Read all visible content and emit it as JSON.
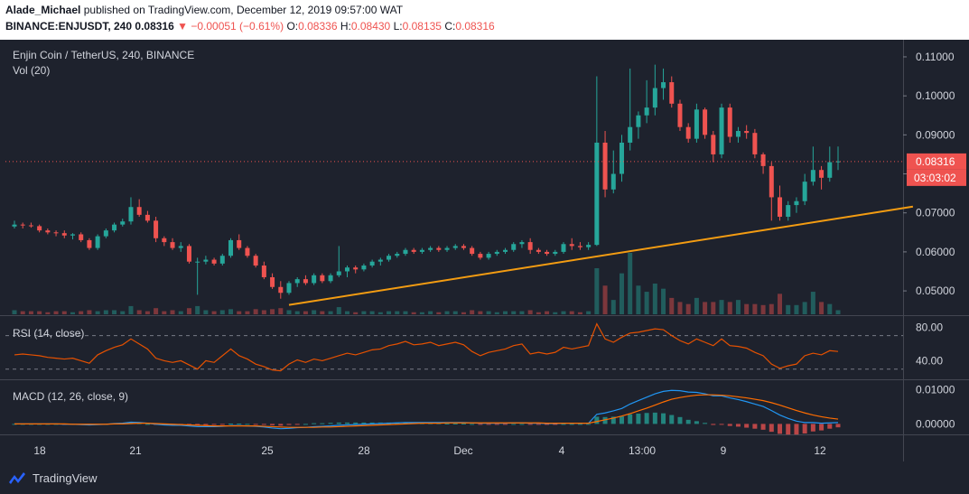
{
  "header": {
    "user": "Alade_Michael",
    "published": "published on TradingView.com, December 12, 2019 09:57:00 WAT",
    "symbol": "BINANCE:ENJUSDT, 240",
    "last": "0.08316",
    "change": "▼ −0.00051 (−0.61%)",
    "o_label": "O:",
    "o": "0.08336",
    "h_label": "H:",
    "h": "0.08430",
    "l_label": "L:",
    "l": "0.08135",
    "c_label": "C:",
    "c": "0.08316"
  },
  "chart_title": "Enjin Coin / TetherUS, 240, BINANCE",
  "vol_label": "Vol (20)",
  "rsi_label": "RSI (14, close)",
  "macd_label": "MACD (12, 26, close, 9)",
  "price_badge": "0.08316",
  "time_badge": "03:03:02",
  "footer_brand": "TradingView",
  "colors": {
    "background": "#1e222d",
    "up": "#26a69a",
    "down": "#ef5350",
    "trendline": "#f39c12",
    "rsi": "#e65100",
    "macd": "#2196f3",
    "signal": "#ff6d00"
  },
  "chart_data": {
    "type": "candlestick",
    "price_axis": {
      "ticks": [
        "0.11000",
        "0.10000",
        "0.09000",
        "0.08000",
        "0.07000",
        "0.06000",
        "0.05000"
      ],
      "range": [
        0.044,
        0.113
      ]
    },
    "rsi_axis": {
      "ticks": [
        "80.00",
        "40.00"
      ],
      "range": [
        20,
        90
      ],
      "bands": [
        70,
        30
      ]
    },
    "macd_axis": {
      "ticks": [
        "0.01000",
        "0.00000"
      ],
      "range": [
        -0.0028,
        0.0125
      ]
    },
    "x_ticks": [
      "18",
      "21",
      "25",
      "28",
      "Dec",
      "4",
      "13:00",
      "9",
      "12"
    ],
    "candles": [
      [
        0.0665,
        0.068,
        0.066,
        0.067
      ],
      [
        0.067,
        0.0675,
        0.066,
        0.0668
      ],
      [
        0.0668,
        0.0675,
        0.0662,
        0.0666
      ],
      [
        0.0666,
        0.067,
        0.065,
        0.0655
      ],
      [
        0.0655,
        0.066,
        0.0645,
        0.065
      ],
      [
        0.065,
        0.0655,
        0.064,
        0.0648
      ],
      [
        0.0648,
        0.0655,
        0.0635,
        0.0642
      ],
      [
        0.0642,
        0.0648,
        0.0632,
        0.0645
      ],
      [
        0.0645,
        0.065,
        0.0625,
        0.063
      ],
      [
        0.063,
        0.0635,
        0.0605,
        0.061
      ],
      [
        0.061,
        0.0645,
        0.0605,
        0.064
      ],
      [
        0.064,
        0.066,
        0.0635,
        0.0655
      ],
      [
        0.0655,
        0.0675,
        0.065,
        0.067
      ],
      [
        0.067,
        0.0685,
        0.0665,
        0.0678
      ],
      [
        0.0678,
        0.074,
        0.067,
        0.0715
      ],
      [
        0.0715,
        0.0735,
        0.069,
        0.0695
      ],
      [
        0.0695,
        0.0705,
        0.0675,
        0.068
      ],
      [
        0.068,
        0.069,
        0.0625,
        0.0635
      ],
      [
        0.0635,
        0.064,
        0.0615,
        0.0625
      ],
      [
        0.0625,
        0.0635,
        0.0605,
        0.061
      ],
      [
        0.061,
        0.0625,
        0.06,
        0.0615
      ],
      [
        0.0615,
        0.062,
        0.057,
        0.0575
      ],
      [
        0.0575,
        0.0585,
        0.049,
        0.0575
      ],
      [
        0.0575,
        0.059,
        0.0568,
        0.058
      ],
      [
        0.058,
        0.0585,
        0.0565,
        0.057
      ],
      [
        0.057,
        0.0595,
        0.0565,
        0.059
      ],
      [
        0.059,
        0.0635,
        0.0585,
        0.063
      ],
      [
        0.063,
        0.0645,
        0.0605,
        0.061
      ],
      [
        0.061,
        0.0615,
        0.0585,
        0.059
      ],
      [
        0.059,
        0.0595,
        0.056,
        0.0565
      ],
      [
        0.0565,
        0.0575,
        0.053,
        0.0535
      ],
      [
        0.0535,
        0.0545,
        0.0505,
        0.051
      ],
      [
        0.051,
        0.0525,
        0.048,
        0.0495
      ],
      [
        0.0495,
        0.0525,
        0.049,
        0.052
      ],
      [
        0.052,
        0.0535,
        0.051,
        0.053
      ],
      [
        0.053,
        0.054,
        0.0515,
        0.052
      ],
      [
        0.052,
        0.0545,
        0.0515,
        0.054
      ],
      [
        0.054,
        0.0545,
        0.052,
        0.0525
      ],
      [
        0.0525,
        0.0545,
        0.052,
        0.054
      ],
      [
        0.054,
        0.0615,
        0.0535,
        0.055
      ],
      [
        0.055,
        0.0565,
        0.0535,
        0.056
      ],
      [
        0.056,
        0.0565,
        0.0545,
        0.0555
      ],
      [
        0.0555,
        0.057,
        0.055,
        0.0565
      ],
      [
        0.0565,
        0.058,
        0.056,
        0.0575
      ],
      [
        0.0575,
        0.0585,
        0.0565,
        0.058
      ],
      [
        0.058,
        0.0595,
        0.0575,
        0.059
      ],
      [
        0.059,
        0.06,
        0.0585,
        0.0595
      ],
      [
        0.0595,
        0.061,
        0.059,
        0.0605
      ],
      [
        0.0605,
        0.061,
        0.0595,
        0.06
      ],
      [
        0.06,
        0.061,
        0.0595,
        0.0605
      ],
      [
        0.0605,
        0.0615,
        0.06,
        0.061
      ],
      [
        0.061,
        0.0615,
        0.06,
        0.0605
      ],
      [
        0.0605,
        0.0615,
        0.06,
        0.061
      ],
      [
        0.061,
        0.062,
        0.0605,
        0.0615
      ],
      [
        0.0615,
        0.062,
        0.0605,
        0.061
      ],
      [
        0.061,
        0.0615,
        0.059,
        0.0595
      ],
      [
        0.0595,
        0.06,
        0.058,
        0.0585
      ],
      [
        0.0585,
        0.06,
        0.058,
        0.0595
      ],
      [
        0.0595,
        0.0605,
        0.059,
        0.06
      ],
      [
        0.06,
        0.061,
        0.0595,
        0.0605
      ],
      [
        0.0605,
        0.0625,
        0.06,
        0.062
      ],
      [
        0.062,
        0.063,
        0.061,
        0.0625
      ],
      [
        0.0625,
        0.0635,
        0.0595,
        0.0605
      ],
      [
        0.0605,
        0.061,
        0.0595,
        0.06
      ],
      [
        0.06,
        0.0605,
        0.059,
        0.0595
      ],
      [
        0.0595,
        0.0605,
        0.059,
        0.06
      ],
      [
        0.06,
        0.0625,
        0.0595,
        0.062
      ],
      [
        0.062,
        0.0635,
        0.0605,
        0.0615
      ],
      [
        0.0615,
        0.0625,
        0.0605,
        0.0612
      ],
      [
        0.0612,
        0.0625,
        0.0605,
        0.0618
      ],
      [
        0.0618,
        0.105,
        0.0615,
        0.088
      ],
      [
        0.088,
        0.091,
        0.074,
        0.076
      ],
      [
        0.076,
        0.086,
        0.075,
        0.08
      ],
      [
        0.08,
        0.09,
        0.078,
        0.088
      ],
      [
        0.088,
        0.107,
        0.086,
        0.092
      ],
      [
        0.092,
        0.096,
        0.089,
        0.095
      ],
      [
        0.095,
        0.104,
        0.093,
        0.097
      ],
      [
        0.097,
        0.108,
        0.095,
        0.102
      ],
      [
        0.102,
        0.107,
        0.099,
        0.1035
      ],
      [
        0.1035,
        0.105,
        0.097,
        0.098
      ],
      [
        0.098,
        0.099,
        0.091,
        0.092
      ],
      [
        0.092,
        0.093,
        0.088,
        0.089
      ],
      [
        0.089,
        0.098,
        0.088,
        0.0965
      ],
      [
        0.0965,
        0.097,
        0.089,
        0.09
      ],
      [
        0.09,
        0.091,
        0.083,
        0.085
      ],
      [
        0.085,
        0.098,
        0.084,
        0.097
      ],
      [
        0.097,
        0.098,
        0.088,
        0.0895
      ],
      [
        0.0895,
        0.092,
        0.088,
        0.091
      ],
      [
        0.091,
        0.0925,
        0.089,
        0.0905
      ],
      [
        0.0905,
        0.0915,
        0.084,
        0.085
      ],
      [
        0.085,
        0.0855,
        0.08,
        0.082
      ],
      [
        0.082,
        0.083,
        0.068,
        0.074
      ],
      [
        0.074,
        0.077,
        0.068,
        0.069
      ],
      [
        0.069,
        0.073,
        0.068,
        0.072
      ],
      [
        0.072,
        0.074,
        0.07,
        0.073
      ],
      [
        0.073,
        0.08,
        0.072,
        0.078
      ],
      [
        0.078,
        0.087,
        0.077,
        0.081
      ],
      [
        0.081,
        0.082,
        0.076,
        0.079
      ],
      [
        0.079,
        0.087,
        0.078,
        0.083
      ],
      [
        0.083,
        0.087,
        0.081,
        0.0832
      ]
    ],
    "volumes": [
      4,
      3,
      3,
      3,
      2,
      3,
      3,
      2,
      3,
      4,
      3,
      4,
      4,
      3,
      8,
      4,
      3,
      6,
      3,
      4,
      3,
      6,
      8,
      4,
      3,
      4,
      5,
      3,
      3,
      5,
      4,
      5,
      6,
      4,
      3,
      3,
      4,
      3,
      3,
      7,
      3,
      2,
      3,
      3,
      2,
      3,
      3,
      3,
      2,
      2,
      3,
      2,
      3,
      3,
      2,
      4,
      3,
      3,
      2,
      3,
      3,
      3,
      4,
      2,
      3,
      2,
      3,
      3,
      2,
      3,
      45,
      28,
      14,
      40,
      60,
      28,
      22,
      30,
      25,
      16,
      12,
      10,
      16,
      12,
      12,
      14,
      12,
      14,
      10,
      10,
      9,
      10,
      20,
      9,
      9,
      12,
      22,
      12,
      10,
      4
    ],
    "rsi": [
      47,
      48,
      47,
      46,
      44,
      43,
      42,
      43,
      40,
      37,
      47,
      52,
      56,
      59,
      66,
      60,
      54,
      43,
      40,
      38,
      40,
      35,
      30,
      40,
      38,
      46,
      54,
      46,
      42,
      36,
      33,
      29,
      28,
      36,
      41,
      38,
      42,
      40,
      43,
      46,
      49,
      47,
      50,
      53,
      54,
      58,
      60,
      63,
      59,
      60,
      62,
      58,
      60,
      62,
      59,
      51,
      46,
      50,
      52,
      54,
      58,
      60,
      48,
      50,
      48,
      50,
      56,
      54,
      56,
      58,
      84,
      66,
      62,
      68,
      73,
      74,
      76,
      78,
      77,
      70,
      64,
      60,
      66,
      62,
      58,
      66,
      58,
      57,
      55,
      50,
      46,
      36,
      31,
      34,
      36,
      46,
      49,
      47,
      52,
      51
    ],
    "macd": [
      0,
      0,
      0,
      0,
      0,
      0,
      -0.0001,
      -0.0001,
      -0.0002,
      -0.0003,
      -0.0002,
      -0.0001,
      0.0001,
      0.0002,
      0.0005,
      0.0004,
      0.0002,
      -0.0001,
      -0.0003,
      -0.0004,
      -0.0004,
      -0.0006,
      -0.0008,
      -0.0008,
      -0.0008,
      -0.0007,
      -0.0005,
      -0.0005,
      -0.0006,
      -0.0007,
      -0.0009,
      -0.0012,
      -0.0014,
      -0.0013,
      -0.0011,
      -0.001,
      -0.0008,
      -0.0007,
      -0.0006,
      -0.0004,
      -0.0003,
      -0.0002,
      -0.0001,
      0,
      0.0001,
      0.0002,
      0.0003,
      0.0004,
      0.0004,
      0.0004,
      0.0004,
      0.0004,
      0.0004,
      0.0004,
      0.0004,
      0.0003,
      0.0002,
      0.0002,
      0.0002,
      0.0002,
      0.0003,
      0.0003,
      0.0002,
      0.0002,
      0.0001,
      0.0001,
      0.0002,
      0.0002,
      0.0002,
      0.0002,
      0.0028,
      0.0032,
      0.0038,
      0.0045,
      0.0058,
      0.0068,
      0.0078,
      0.0088,
      0.0095,
      0.0098,
      0.0097,
      0.0093,
      0.0092,
      0.0088,
      0.0082,
      0.0082,
      0.0076,
      0.0071,
      0.0065,
      0.0058,
      0.0051,
      0.0039,
      0.0026,
      0.0016,
      0.0008,
      0.0004,
      0.0004,
      0.0002,
      0.0003,
      0.0004
    ],
    "signal": [
      0,
      0,
      0,
      0,
      0,
      0,
      0,
      -0.0001,
      -0.0001,
      -0.0001,
      -0.0001,
      -0.0001,
      0,
      0,
      0.0001,
      0.0002,
      0.0002,
      0.0001,
      0,
      -0.0001,
      -0.0002,
      -0.0003,
      -0.0004,
      -0.0005,
      -0.0006,
      -0.0006,
      -0.0006,
      -0.0006,
      -0.0006,
      -0.0006,
      -0.0007,
      -0.0008,
      -0.0009,
      -0.001,
      -0.001,
      -0.001,
      -0.001,
      -0.0009,
      -0.0009,
      -0.0008,
      -0.0007,
      -0.0006,
      -0.0005,
      -0.0004,
      -0.0003,
      -0.0002,
      -0.0001,
      0,
      0.0001,
      0.0002,
      0.0002,
      0.0002,
      0.0003,
      0.0003,
      0.0003,
      0.0003,
      0.0003,
      0.0003,
      0.0003,
      0.0003,
      0.0003,
      0.0003,
      0.0003,
      0.0003,
      0.0002,
      0.0002,
      0.0002,
      0.0002,
      0.0002,
      0.0002,
      0.0007,
      0.0012,
      0.0017,
      0.0023,
      0.003,
      0.0038,
      0.0046,
      0.0055,
      0.0064,
      0.0072,
      0.0077,
      0.0081,
      0.0084,
      0.0085,
      0.0085,
      0.0084,
      0.0082,
      0.0079,
      0.0076,
      0.0072,
      0.0068,
      0.0062,
      0.0055,
      0.0047,
      0.0039,
      0.0032,
      0.0026,
      0.0021,
      0.0017,
      0.0014
    ],
    "trendline": {
      "start": [
        33,
        0.0464
      ],
      "end": [
        108,
        0.0716
      ]
    },
    "last_price": 0.08316
  }
}
